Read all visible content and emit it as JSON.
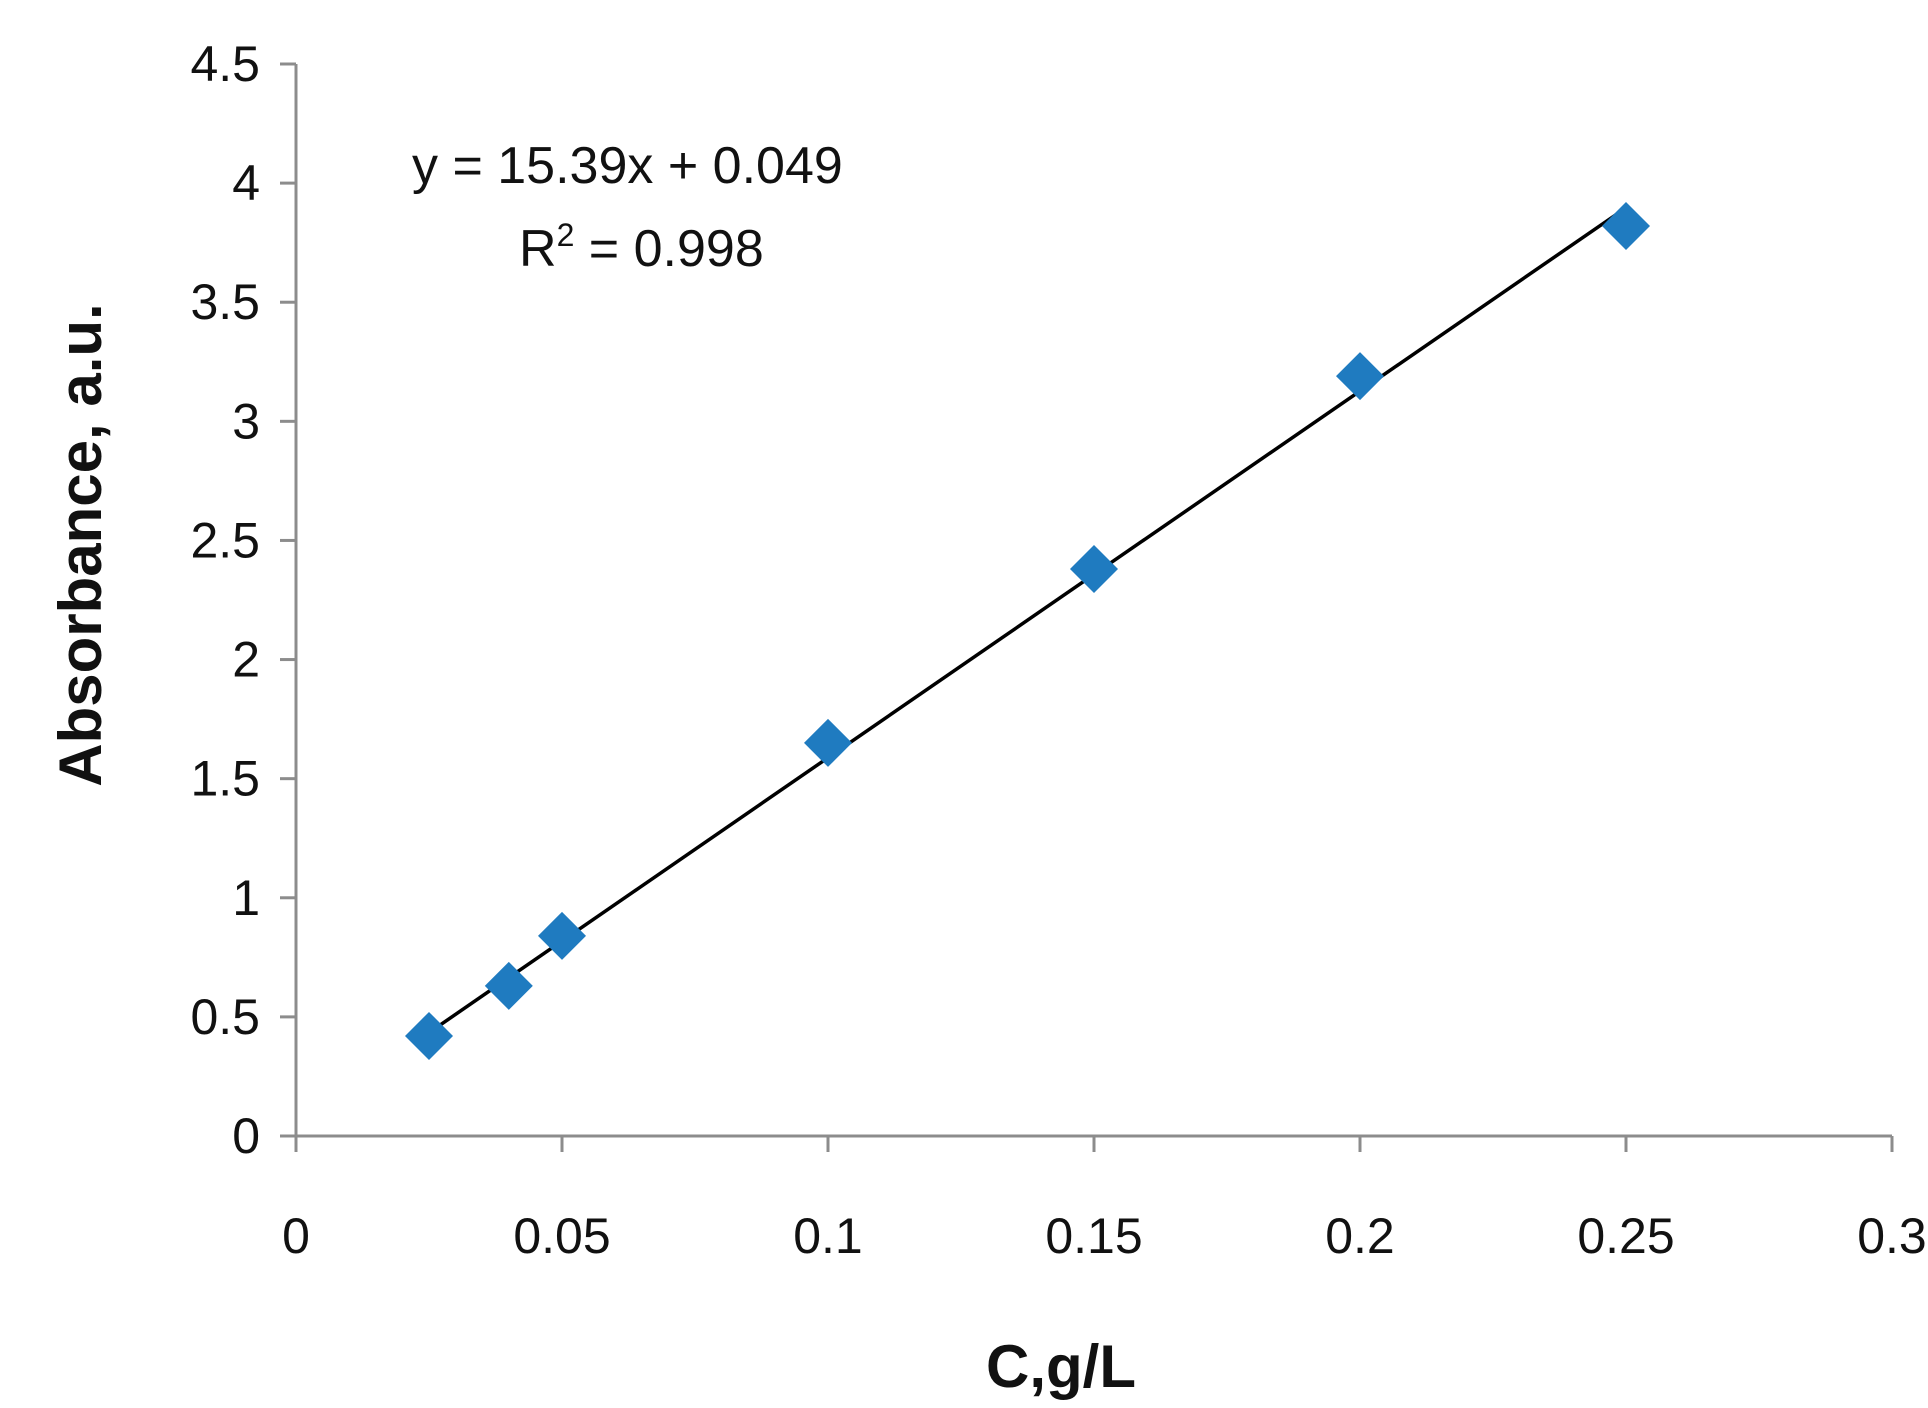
{
  "chart_data": {
    "type": "scatter",
    "title": "",
    "xlabel": "C,g/L",
    "ylabel": "Absorbance, a.u.",
    "xlim": [
      0,
      0.3
    ],
    "ylim": [
      0,
      4.5
    ],
    "x_ticks": [
      "0",
      "0.05",
      "0.1",
      "0.15",
      "0.2",
      "0.25",
      "0.3"
    ],
    "y_ticks": [
      "0",
      "0.5",
      "1",
      "1.5",
      "2",
      "2.5",
      "3",
      "3.5",
      "4",
      "4.5"
    ],
    "grid": false,
    "legend": "none",
    "marker": "diamond",
    "marker_color": "#1f7bc0",
    "series": [
      {
        "x": [
          0.025,
          0.04,
          0.05,
          0.1,
          0.15,
          0.2,
          0.25
        ],
        "y": [
          0.42,
          0.63,
          0.84,
          1.65,
          2.38,
          3.19,
          3.82
        ]
      }
    ],
    "trendline": {
      "slope": 15.39,
      "intercept": 0.049,
      "x_range": [
        0.025,
        0.25
      ],
      "equation": "y = 15.39x + 0.049",
      "r2_prefix": "R",
      "r2_sup": "2",
      "r2_value": " = 0.998"
    }
  }
}
